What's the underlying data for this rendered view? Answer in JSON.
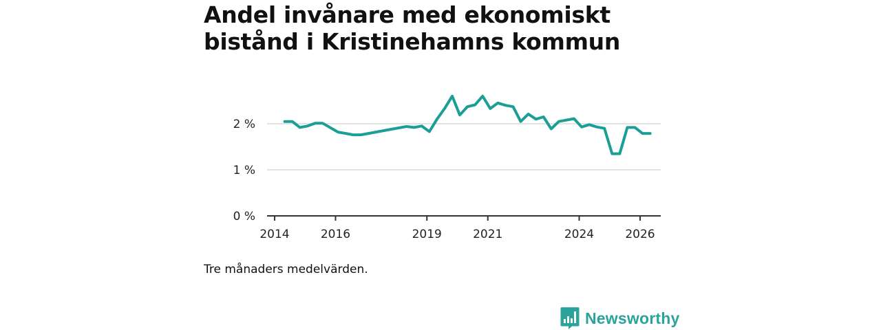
{
  "chart_data": {
    "type": "line",
    "title": "Andel invånare med ekonomiskt bistånd i Kristinehamns kommun",
    "title_lines": [
      "Andel invånare med ekonomiskt",
      "bistånd i Kristinehamns kommun"
    ],
    "xlabel": "",
    "ylabel": "",
    "xlim": [
      2014,
      2026.7
    ],
    "ylim": [
      0,
      2.7
    ],
    "x_ticks": [
      {
        "value": 2014,
        "label": "2014"
      },
      {
        "value": 2016,
        "label": "2016"
      },
      {
        "value": 2019,
        "label": "2019"
      },
      {
        "value": 2021,
        "label": "2021"
      },
      {
        "value": 2024,
        "label": "2024"
      },
      {
        "value": 2026,
        "label": "2026"
      }
    ],
    "y_ticks": [
      {
        "value": 0,
        "label": "0 %"
      },
      {
        "value": 1,
        "label": "1 %"
      },
      {
        "value": 2,
        "label": "2 %"
      }
    ],
    "grid": true,
    "line_color": "#1a9e95",
    "series": [
      {
        "name": "Andel invånare med ekonomiskt bistånd",
        "points": [
          [
            2014.33,
            2.05
          ],
          [
            2014.58,
            2.05
          ],
          [
            2014.83,
            1.92
          ],
          [
            2015.08,
            1.95
          ],
          [
            2015.33,
            2.01
          ],
          [
            2015.58,
            2.01
          ],
          [
            2016.08,
            1.82
          ],
          [
            2016.58,
            1.76
          ],
          [
            2016.83,
            1.76
          ],
          [
            2017.08,
            1.79
          ],
          [
            2017.83,
            1.88
          ],
          [
            2018.33,
            1.94
          ],
          [
            2018.58,
            1.92
          ],
          [
            2018.83,
            1.95
          ],
          [
            2019.08,
            1.83
          ],
          [
            2019.33,
            2.1
          ],
          [
            2019.58,
            2.33
          ],
          [
            2019.83,
            2.6
          ],
          [
            2020.08,
            2.19
          ],
          [
            2020.33,
            2.37
          ],
          [
            2020.58,
            2.41
          ],
          [
            2020.83,
            2.6
          ],
          [
            2021.08,
            2.33
          ],
          [
            2021.33,
            2.45
          ],
          [
            2021.58,
            2.4
          ],
          [
            2021.83,
            2.37
          ],
          [
            2022.08,
            2.05
          ],
          [
            2022.33,
            2.21
          ],
          [
            2022.58,
            2.1
          ],
          [
            2022.83,
            2.15
          ],
          [
            2023.08,
            1.89
          ],
          [
            2023.33,
            2.05
          ],
          [
            2023.83,
            2.11
          ],
          [
            2024.08,
            1.93
          ],
          [
            2024.33,
            1.98
          ],
          [
            2024.58,
            1.93
          ],
          [
            2024.83,
            1.9
          ],
          [
            2025.08,
            1.35
          ],
          [
            2025.33,
            1.35
          ],
          [
            2025.58,
            1.92
          ],
          [
            2025.83,
            1.92
          ],
          [
            2026.08,
            1.79
          ],
          [
            2026.33,
            1.79
          ]
        ]
      }
    ]
  },
  "note": "Tre månaders medelvärden.",
  "brand": {
    "name": "Newsworthy",
    "color": "#2aa39a",
    "icon": "bar-chart-logo-icon"
  }
}
